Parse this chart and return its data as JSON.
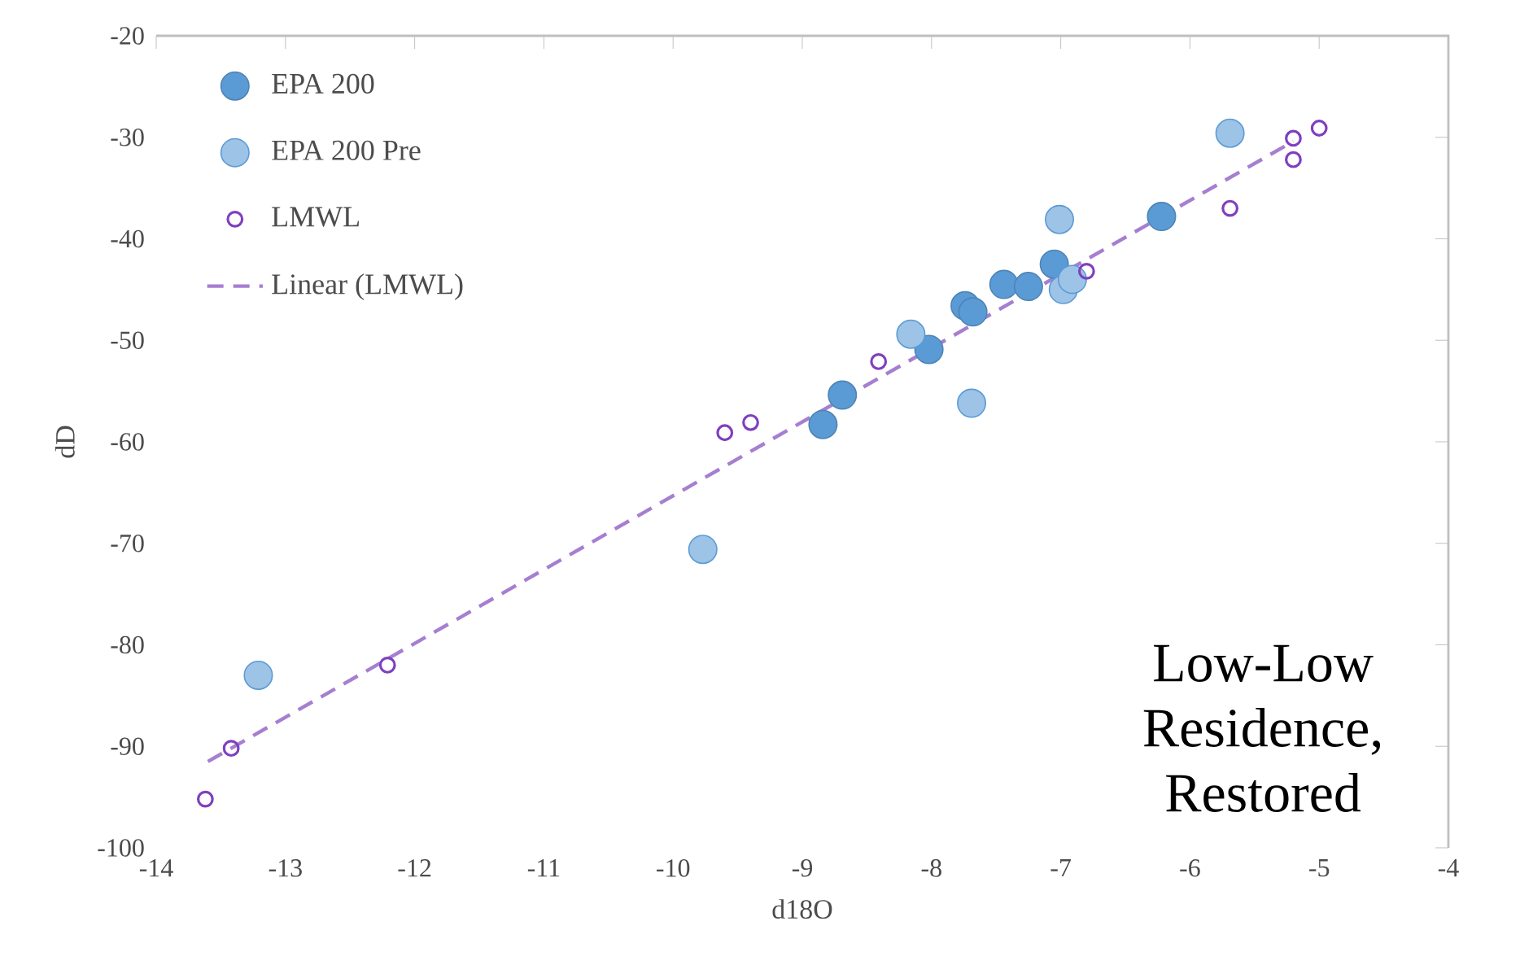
{
  "chart_data": {
    "type": "scatter",
    "xlabel": "d18O",
    "ylabel": "dD",
    "xlim": [
      -14,
      -4
    ],
    "ylim": [
      -100,
      -20
    ],
    "xticks": [
      -14,
      -13,
      -12,
      -11,
      -10,
      -9,
      -8,
      -7,
      -6,
      -5,
      -4
    ],
    "yticks": [
      -100,
      -90,
      -80,
      -70,
      -60,
      -50,
      -40,
      -30,
      -20
    ],
    "grid": false,
    "legend": "top left",
    "marker": "circle",
    "annotations": [
      "Low-Low Residence, Restored"
    ],
    "series": [
      {
        "name": "EPA 200",
        "color": "#5b9bd5",
        "x": [
          -8.84,
          -8.69,
          -8.02,
          -7.74,
          -7.68,
          -7.44,
          -7.25,
          -7.05,
          -6.22
        ],
        "values": [
          -58.3,
          -55.4,
          -50.9,
          -46.6,
          -47.2,
          -44.5,
          -44.7,
          -42.5,
          -37.8
        ]
      },
      {
        "name": "EPA 200 Pre",
        "color": "#9dc3e6",
        "x": [
          -13.21,
          -9.77,
          -8.16,
          -7.69,
          -7.01,
          -6.98,
          -6.91,
          -5.69
        ],
        "values": [
          -83.0,
          -70.6,
          -49.4,
          -56.2,
          -38.1,
          -45.0,
          -44.0,
          -29.6
        ]
      },
      {
        "name": "LMWL",
        "color": "#7f3fbf",
        "x": [
          -13.62,
          -13.42,
          -12.21,
          -9.6,
          -9.4,
          -8.41,
          -6.8,
          -5.69,
          -5.2,
          -5.2,
          -5.0
        ],
        "values": [
          -95.2,
          -90.2,
          -82.0,
          -59.1,
          -58.1,
          -52.1,
          -43.2,
          -37.0,
          -32.2,
          -30.1,
          -29.1
        ]
      },
      {
        "name": "Linear (LMWL)",
        "type": "line",
        "color": "#a67fd0",
        "line_style": "dashed",
        "marker": "none",
        "x": [
          -13.6,
          -5.2
        ],
        "values": [
          -91.5,
          -30.4
        ]
      }
    ]
  }
}
